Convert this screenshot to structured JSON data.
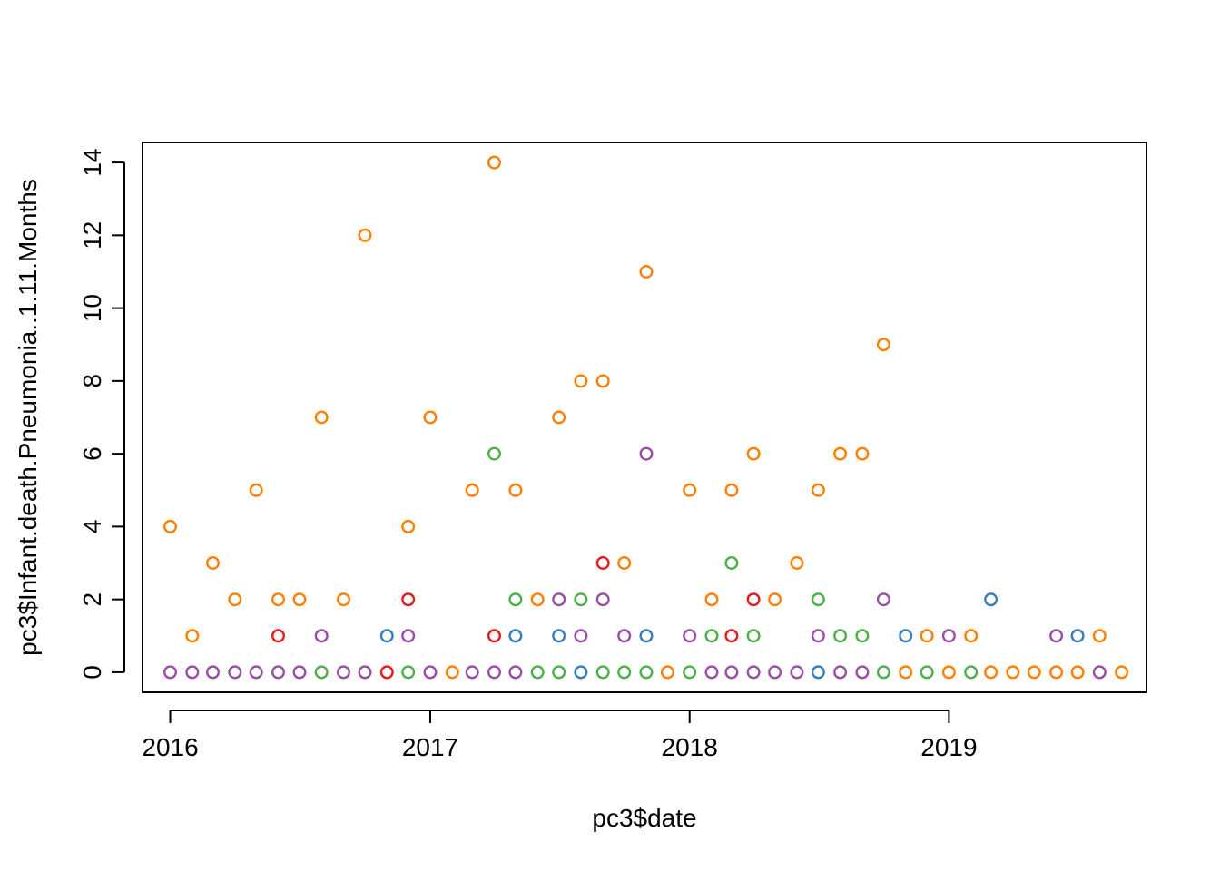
{
  "chart_data": {
    "type": "scatter",
    "title": "",
    "xlabel": "pc3$date",
    "ylabel": "pc3$Infant.death.Pneumonia..1.11.Months",
    "x_axis_type": "date",
    "x_ticks": [
      "2016",
      "2017",
      "2018",
      "2019"
    ],
    "y_ticks": [
      "0",
      "2",
      "4",
      "6",
      "8",
      "10",
      "12",
      "14"
    ],
    "xlim": [
      "2015-11-23",
      "2019-10-06"
    ],
    "ylim": [
      -0.55,
      14.55
    ],
    "grid": false,
    "legend": "none",
    "colors": {
      "orange": "#FF7F00",
      "purple": "#984EA3",
      "green": "#4DAF4A",
      "blue": "#377EB8",
      "red": "#E41A1C"
    },
    "series": [
      {
        "color": "#FF7F00",
        "points": [
          [
            "2016-01-01",
            4
          ],
          [
            "2016-02-01",
            1
          ],
          [
            "2016-03-01",
            3
          ],
          [
            "2016-04-01",
            2
          ],
          [
            "2016-05-01",
            5
          ],
          [
            "2016-06-01",
            2
          ],
          [
            "2016-07-01",
            2
          ],
          [
            "2016-08-01",
            7
          ],
          [
            "2016-09-01",
            2
          ],
          [
            "2016-10-01",
            12
          ],
          [
            "2016-12-01",
            4
          ],
          [
            "2017-01-01",
            7
          ],
          [
            "2017-02-01",
            0
          ],
          [
            "2017-03-01",
            5
          ],
          [
            "2017-04-01",
            14
          ],
          [
            "2017-05-01",
            5
          ],
          [
            "2017-06-01",
            2
          ],
          [
            "2017-07-01",
            7
          ],
          [
            "2017-08-01",
            8
          ],
          [
            "2017-09-01",
            8
          ],
          [
            "2017-10-01",
            3
          ],
          [
            "2017-11-01",
            11
          ],
          [
            "2017-12-01",
            0
          ],
          [
            "2018-01-01",
            5
          ],
          [
            "2018-02-01",
            2
          ],
          [
            "2018-03-01",
            5
          ],
          [
            "2018-04-01",
            6
          ],
          [
            "2018-05-01",
            2
          ],
          [
            "2018-06-01",
            3
          ],
          [
            "2018-07-01",
            5
          ],
          [
            "2018-08-01",
            6
          ],
          [
            "2018-09-01",
            6
          ],
          [
            "2018-10-01",
            9
          ],
          [
            "2018-11-01",
            0
          ],
          [
            "2018-12-01",
            1
          ],
          [
            "2019-01-01",
            0
          ],
          [
            "2019-02-01",
            1
          ],
          [
            "2019-03-01",
            0
          ],
          [
            "2019-04-01",
            0
          ],
          [
            "2019-05-01",
            0
          ],
          [
            "2019-06-01",
            0
          ],
          [
            "2019-07-01",
            0
          ],
          [
            "2019-08-01",
            1
          ],
          [
            "2019-09-01",
            0
          ]
        ]
      },
      {
        "color": "#984EA3",
        "points": [
          [
            "2016-01-01",
            0
          ],
          [
            "2016-02-01",
            0
          ],
          [
            "2016-03-01",
            0
          ],
          [
            "2016-04-01",
            0
          ],
          [
            "2016-05-01",
            0
          ],
          [
            "2016-06-01",
            0
          ],
          [
            "2016-07-01",
            0
          ],
          [
            "2016-08-01",
            1
          ],
          [
            "2016-09-01",
            0
          ],
          [
            "2016-10-01",
            0
          ],
          [
            "2016-12-01",
            1
          ],
          [
            "2017-01-01",
            0
          ],
          [
            "2017-03-01",
            0
          ],
          [
            "2017-04-01",
            0
          ],
          [
            "2017-05-01",
            0
          ],
          [
            "2017-07-01",
            2
          ],
          [
            "2017-08-01",
            1
          ],
          [
            "2017-09-01",
            2
          ],
          [
            "2017-10-01",
            1
          ],
          [
            "2017-11-01",
            6
          ],
          [
            "2018-01-01",
            1
          ],
          [
            "2018-02-01",
            0
          ],
          [
            "2018-03-01",
            0
          ],
          [
            "2018-04-01",
            0
          ],
          [
            "2018-05-01",
            0
          ],
          [
            "2018-06-01",
            0
          ],
          [
            "2018-07-01",
            1
          ],
          [
            "2018-08-01",
            0
          ],
          [
            "2018-09-01",
            0
          ],
          [
            "2018-10-01",
            2
          ],
          [
            "2019-01-01",
            1
          ],
          [
            "2019-06-01",
            1
          ],
          [
            "2019-08-01",
            0
          ]
        ]
      },
      {
        "color": "#4DAF4A",
        "points": [
          [
            "2016-08-01",
            0
          ],
          [
            "2016-12-01",
            0
          ],
          [
            "2017-04-01",
            6
          ],
          [
            "2017-05-01",
            2
          ],
          [
            "2017-06-01",
            0
          ],
          [
            "2017-07-01",
            0
          ],
          [
            "2017-08-01",
            2
          ],
          [
            "2017-09-01",
            0
          ],
          [
            "2017-10-01",
            0
          ],
          [
            "2017-11-01",
            0
          ],
          [
            "2018-01-01",
            0
          ],
          [
            "2018-02-01",
            1
          ],
          [
            "2018-03-01",
            3
          ],
          [
            "2018-04-01",
            1
          ],
          [
            "2018-07-01",
            2
          ],
          [
            "2018-08-01",
            1
          ],
          [
            "2018-09-01",
            1
          ],
          [
            "2018-10-01",
            0
          ],
          [
            "2018-12-01",
            0
          ],
          [
            "2019-02-01",
            0
          ]
        ]
      },
      {
        "color": "#377EB8",
        "points": [
          [
            "2016-11-01",
            1
          ],
          [
            "2017-05-01",
            1
          ],
          [
            "2017-07-01",
            1
          ],
          [
            "2017-08-01",
            0
          ],
          [
            "2017-11-01",
            1
          ],
          [
            "2018-07-01",
            0
          ],
          [
            "2018-11-01",
            1
          ],
          [
            "2019-03-01",
            2
          ],
          [
            "2019-07-01",
            1
          ]
        ]
      },
      {
        "color": "#E41A1C",
        "points": [
          [
            "2016-06-01",
            1
          ],
          [
            "2016-11-01",
            0
          ],
          [
            "2016-12-01",
            2
          ],
          [
            "2017-04-01",
            1
          ],
          [
            "2017-09-01",
            3
          ],
          [
            "2018-03-01",
            1
          ],
          [
            "2018-04-01",
            2
          ]
        ]
      }
    ]
  }
}
